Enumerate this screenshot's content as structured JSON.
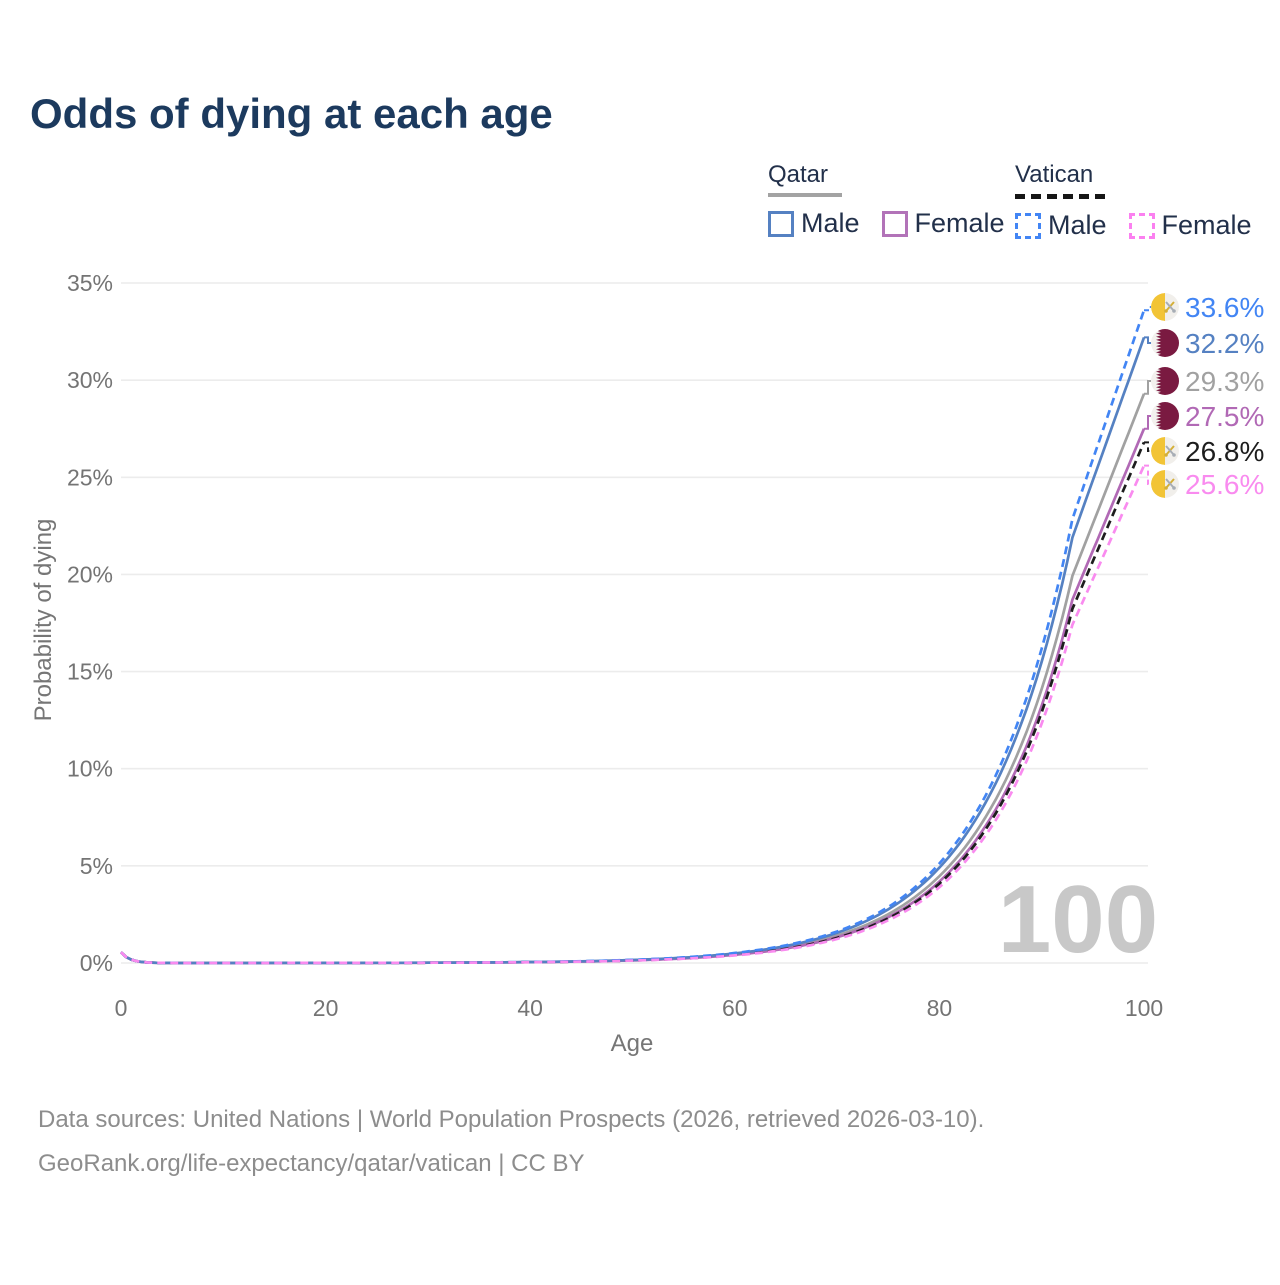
{
  "title": "Odds of dying at each age",
  "legend": {
    "groups": [
      {
        "name": "Qatar",
        "line_style": "solid",
        "underline_color": "#a3a3a3",
        "items": [
          {
            "label": "Male",
            "color": "#5581c2",
            "dash": false
          },
          {
            "label": "Female",
            "color": "#b273b8",
            "dash": false
          }
        ]
      },
      {
        "name": "Vatican",
        "line_style": "dashed",
        "underline_color": "#161616",
        "items": [
          {
            "label": "Male",
            "color": "#4285f4",
            "dash": true
          },
          {
            "label": "Female",
            "color": "#fb80f0",
            "dash": true
          }
        ]
      }
    ]
  },
  "chart_data": {
    "type": "line",
    "title": "Odds of dying at each age",
    "xlabel": "Age",
    "ylabel": "Probability of dying",
    "xlim": [
      0,
      100
    ],
    "ylim": [
      0,
      35
    ],
    "x_ticks": [
      0,
      20,
      40,
      60,
      80,
      100
    ],
    "y_ticks": [
      "0%",
      "5%",
      "10%",
      "15%",
      "20%",
      "25%",
      "30%",
      "35%"
    ],
    "grid": "horizontal-only",
    "legend_position": "top-right",
    "watermark": "100",
    "ages_for_approx_values": [
      0,
      20,
      40,
      60,
      80,
      100
    ],
    "series": [
      {
        "name": "Vatican Male",
        "flag": "vatican",
        "dash": true,
        "color": "#4285f4",
        "end_value": 33.6,
        "label": "33.6%",
        "approx_values_by_age": [
          0.55,
          0.01,
          0.05,
          0.51,
          5.12,
          33.6
        ]
      },
      {
        "name": "Qatar Male",
        "flag": "qatar",
        "dash": false,
        "color": "#5581c2",
        "end_value": 32.2,
        "label": "32.2%",
        "approx_values_by_age": [
          0.55,
          0.01,
          0.05,
          0.49,
          4.91,
          32.2
        ]
      },
      {
        "name": "Qatar Both sexes",
        "flag": "qatar",
        "dash": false,
        "color": "#a1a1a1",
        "end_value": 29.3,
        "label": "29.3%",
        "approx_values_by_age": [
          0.55,
          0.01,
          0.04,
          0.45,
          4.47,
          29.3
        ]
      },
      {
        "name": "Qatar Female",
        "flag": "qatar",
        "dash": false,
        "color": "#b169b5",
        "end_value": 27.5,
        "label": "27.5%",
        "approx_values_by_age": [
          0.55,
          0.01,
          0.04,
          0.42,
          4.19,
          27.5
        ]
      },
      {
        "name": "Vatican Both sexes",
        "flag": "vatican",
        "dash": true,
        "color": "#1d1d1d",
        "end_value": 26.8,
        "label": "26.8%",
        "approx_values_by_age": [
          0.55,
          0.01,
          0.04,
          0.41,
          4.09,
          26.8
        ]
      },
      {
        "name": "Vatican Female",
        "flag": "vatican",
        "dash": true,
        "color": "#f98bef",
        "end_value": 25.6,
        "label": "25.6%",
        "approx_values_by_age": [
          0.55,
          0.01,
          0.04,
          0.39,
          3.9,
          25.6
        ]
      }
    ],
    "curve_model": {
      "infant_value": 0.55,
      "infant_decay": 1.15,
      "growth_rate": 0.115,
      "knee_age": 93,
      "knee_fraction": 0.68
    }
  },
  "flag_colors": {
    "qatar_maroon": "#7a1a41",
    "qatar_white": "#f3f1ee",
    "vatican_yellow": "#f2c436",
    "vatican_white": "#f1efeb",
    "vatican_key_gold": "#d4af37",
    "vatican_key_silver": "#a7adb5"
  },
  "footer": {
    "line1": "Data sources: United Nations | World Population Prospects (2026, retrieved 2026-03-10).",
    "line2": "GeoRank.org/life-expectancy/qatar/vatican | CC BY"
  }
}
